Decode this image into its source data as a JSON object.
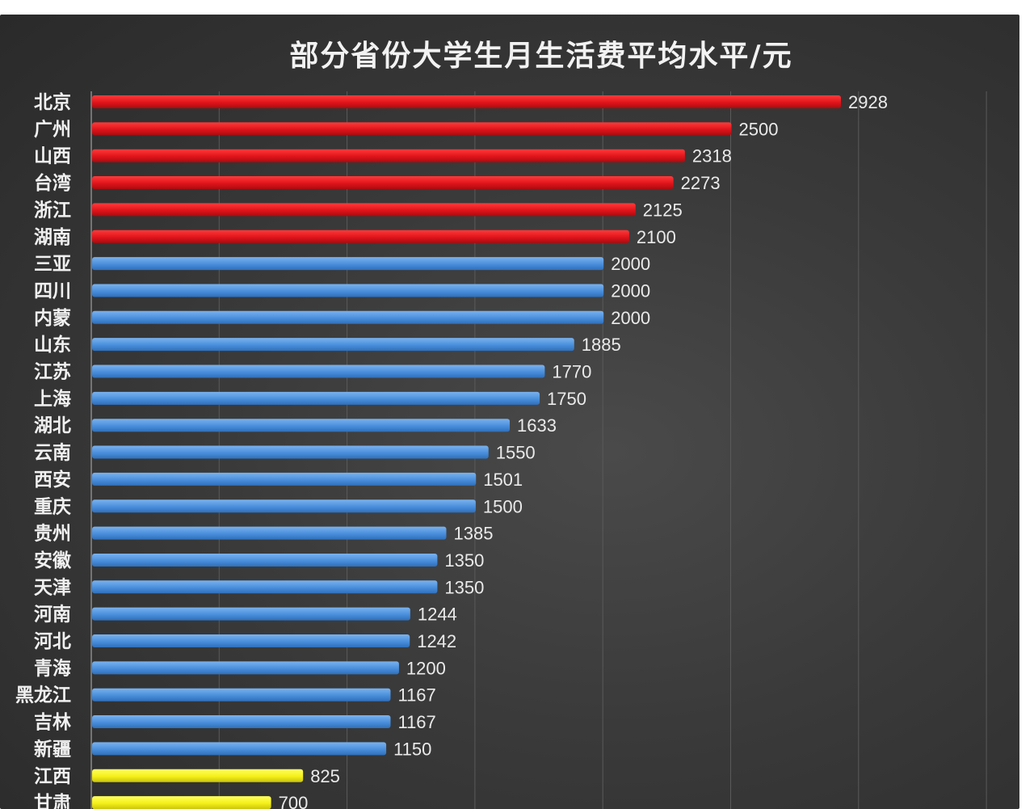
{
  "chart_data": {
    "type": "bar",
    "orientation": "horizontal",
    "title": "部分省份大学生月生活费平均水平/元",
    "categories": [
      "北京",
      "广州",
      "山西",
      "台湾",
      "浙江",
      "湖南",
      "三亚",
      "四川",
      "内蒙",
      "山东",
      "江苏",
      "上海",
      "湖北",
      "云南",
      "西安",
      "重庆",
      "贵州",
      "安徽",
      "天津",
      "河南",
      "河北",
      "青海",
      "黑龙江",
      "吉林",
      "新疆",
      "江西",
      "甘肃"
    ],
    "values": [
      2928,
      2500,
      2318,
      2273,
      2125,
      2100,
      2000,
      2000,
      2000,
      1885,
      1770,
      1750,
      1633,
      1550,
      1501,
      1500,
      1385,
      1350,
      1350,
      1244,
      1242,
      1200,
      1167,
      1167,
      1150,
      825,
      700
    ],
    "color_groups": [
      "red",
      "red",
      "red",
      "red",
      "red",
      "red",
      "blue",
      "blue",
      "blue",
      "blue",
      "blue",
      "blue",
      "blue",
      "blue",
      "blue",
      "blue",
      "blue",
      "blue",
      "blue",
      "blue",
      "blue",
      "blue",
      "blue",
      "blue",
      "blue",
      "yellow",
      "yellow"
    ],
    "colors": {
      "red": "#e0141b",
      "blue": "#4a8fdc",
      "yellow": "#f5f019"
    },
    "background": "#3a3a3a",
    "grid": true,
    "legend": "none",
    "xlabel": "",
    "ylabel": ""
  }
}
